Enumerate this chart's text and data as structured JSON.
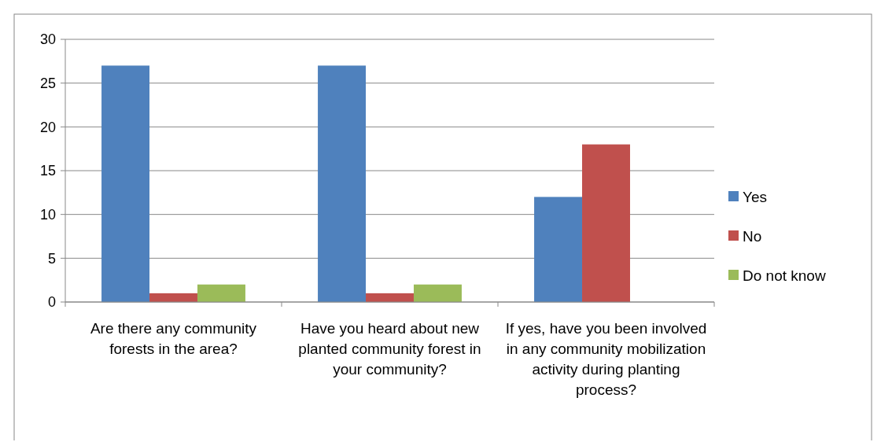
{
  "chart_data": {
    "type": "bar",
    "categories": [
      "Are there any community forests in the area?",
      "Have you heard about new planted community forest in your community?",
      "If yes, have you been involved in any community mobilization activity during planting process?"
    ],
    "series": [
      {
        "name": "Yes",
        "color": "#4f81bd",
        "values": [
          27,
          27,
          12
        ]
      },
      {
        "name": "No",
        "color": "#c0504d",
        "values": [
          1,
          1,
          18
        ]
      },
      {
        "name": "Do not know",
        "color": "#9bbb59",
        "values": [
          2,
          2,
          null
        ]
      }
    ],
    "ylim": [
      0,
      30
    ],
    "yticks": [
      0,
      5,
      10,
      15,
      20,
      25,
      30
    ],
    "grid": "y",
    "legend": "right"
  }
}
